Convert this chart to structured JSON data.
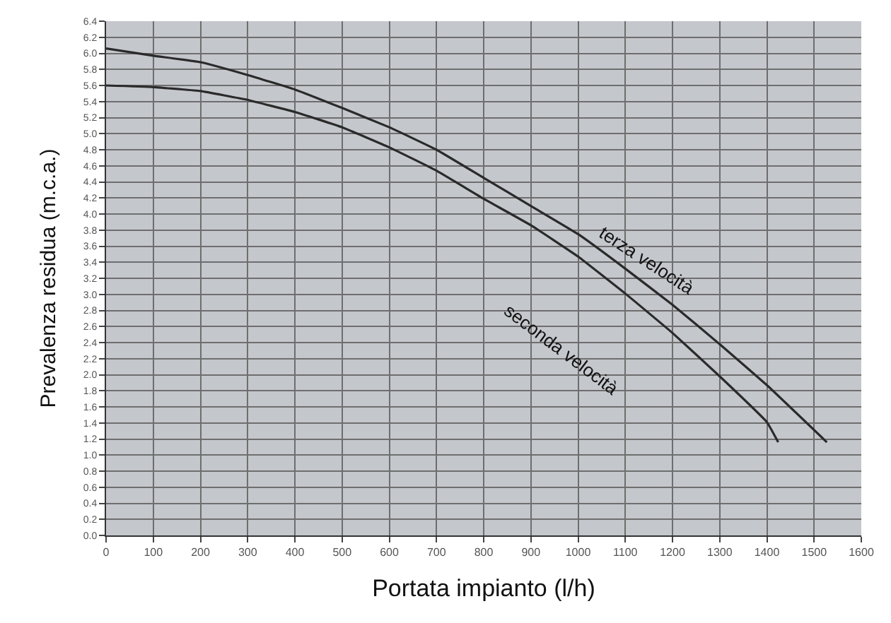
{
  "chart_data": {
    "type": "line",
    "xlabel": "Portata impianto (l/h)",
    "ylabel": "Prevalenza residua (m.c.a.)",
    "series": [
      {
        "color": "#2a2a2a",
        "x": [
          0,
          100,
          200,
          300,
          400,
          500,
          600,
          700,
          800,
          900,
          1000,
          1100,
          1200,
          1300,
          1400,
          1527
        ],
        "values": [
          6.06,
          5.97,
          5.89,
          5.73,
          5.55,
          5.32,
          5.08,
          4.8,
          4.45,
          4.1,
          3.75,
          3.32,
          2.87,
          2.38,
          1.87,
          1.16
        ]
      },
      {
        "color": "#2a2a2a",
        "x": [
          0,
          100,
          200,
          300,
          400,
          500,
          600,
          700,
          800,
          900,
          1000,
          1100,
          1200,
          1300,
          1400,
          1424
        ],
        "values": [
          5.6,
          5.58,
          5.53,
          5.42,
          5.27,
          5.08,
          4.83,
          4.54,
          4.19,
          3.86,
          3.47,
          3.01,
          2.52,
          1.98,
          1.41,
          1.16
        ]
      }
    ],
    "annotations": [
      "terza velocità",
      "seconda velocità"
    ],
    "xlim": [
      0,
      1600
    ],
    "xticks": [
      0,
      100,
      200,
      300,
      400,
      500,
      600,
      700,
      800,
      900,
      1000,
      1100,
      1200,
      1300,
      1400,
      1500,
      1600
    ],
    "ylim": [
      0,
      6.4
    ],
    "yticks": [
      {
        "value": 0,
        "label": "0.0"
      },
      0.2,
      0.4,
      0.6,
      0.8,
      {
        "value": 1,
        "label": "1.0"
      },
      1.2,
      1.4,
      1.6,
      1.8,
      {
        "value": 2,
        "label": "2.0"
      },
      2.2,
      2.4,
      2.6,
      2.8,
      {
        "value": 3,
        "label": "3.0"
      },
      3.2,
      3.4,
      3.6,
      3.8,
      {
        "value": 4,
        "label": "4.0"
      },
      4.2,
      4.4,
      4.6,
      4.8,
      {
        "value": 5,
        "label": "5.0"
      },
      5.2,
      5.4,
      5.6,
      5.8,
      {
        "value": 6,
        "label": "6.0"
      },
      6.2,
      6.4
    ],
    "grid": true,
    "marker": "none",
    "line_style": "solid"
  }
}
